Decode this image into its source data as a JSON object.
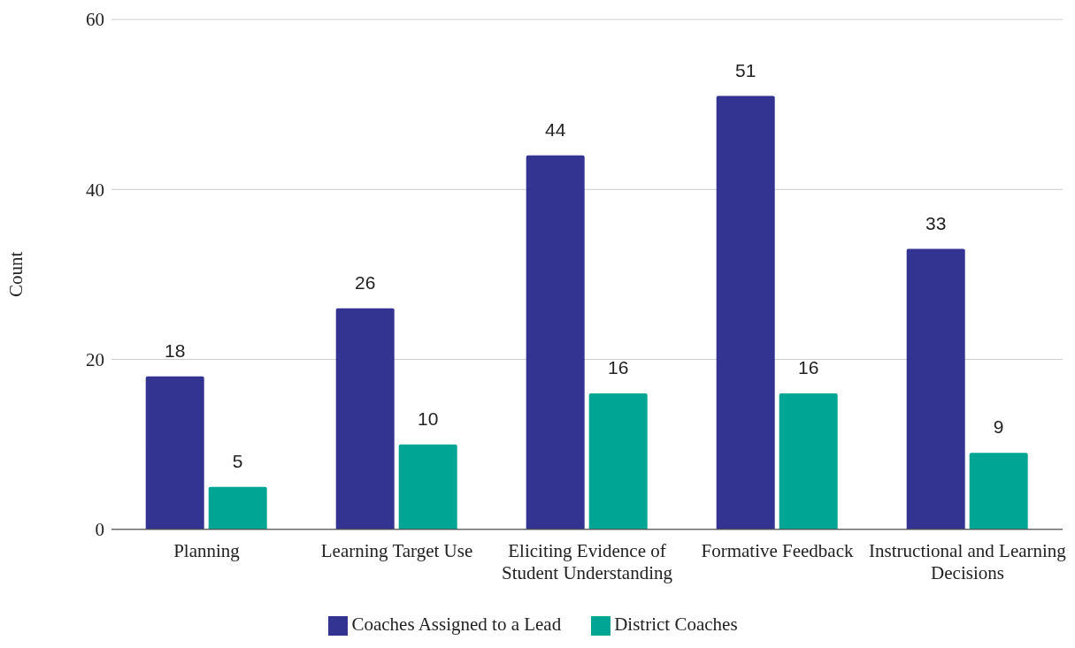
{
  "chart_data": {
    "type": "bar",
    "ylabel": "Count",
    "categories": [
      "Planning",
      "Learning Target Use",
      "Eliciting Evidence of Student Understanding",
      "Formative Feedback",
      "Instructional and Learning Decisions"
    ],
    "series": [
      {
        "name": "Coaches Assigned to a Lead",
        "color": "#333391",
        "values": [
          18,
          26,
          44,
          51,
          33
        ]
      },
      {
        "name": "District Coaches",
        "color": "#00a693",
        "values": [
          5,
          10,
          16,
          16,
          9
        ]
      }
    ],
    "ylim": [
      0,
      60
    ],
    "yticks": [
      0,
      20,
      40,
      60
    ],
    "grid": "y",
    "legend": "bottom",
    "data_labels": true
  }
}
